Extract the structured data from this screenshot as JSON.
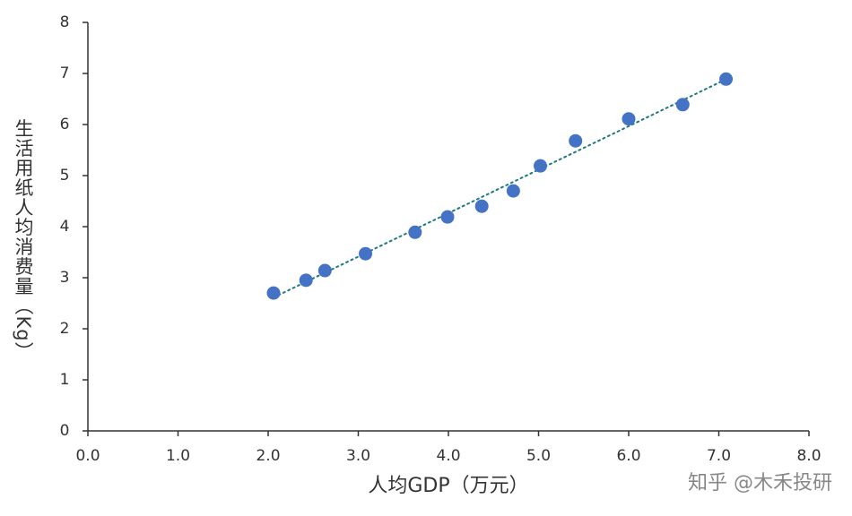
{
  "chart_data": {
    "type": "scatter",
    "x_label": "人均GDP（万元）",
    "y_label": "生活用纸人均消费量（Kg）",
    "x": [
      2.06,
      2.42,
      2.63,
      3.08,
      3.63,
      3.99,
      4.37,
      4.72,
      5.02,
      5.41,
      6.0,
      6.6,
      7.08
    ],
    "values": [
      2.7,
      2.95,
      3.14,
      3.47,
      3.89,
      4.19,
      4.4,
      4.7,
      5.19,
      5.68,
      6.11,
      6.39,
      6.89
    ],
    "color": "#4472c4",
    "trendline": "linear",
    "trendline_color": "#1f7a80",
    "xlim": [
      0,
      8
    ],
    "xticks": [
      {
        "value": 0,
        "label": "0.0"
      },
      {
        "value": 1,
        "label": "1.0"
      },
      {
        "value": 2,
        "label": "2.0"
      },
      {
        "value": 3,
        "label": "3.0"
      },
      {
        "value": 4,
        "label": "4.0"
      },
      {
        "value": 5,
        "label": "5.0"
      },
      {
        "value": 6,
        "label": "6.0"
      },
      {
        "value": 7,
        "label": "7.0"
      },
      {
        "value": 8,
        "label": "8.0"
      }
    ],
    "ylim": [
      0,
      8
    ],
    "yticks": [
      0,
      1,
      2,
      3,
      4,
      5,
      6,
      7,
      8
    ],
    "grid": false,
    "watermark": "知乎 @木禾投研"
  }
}
